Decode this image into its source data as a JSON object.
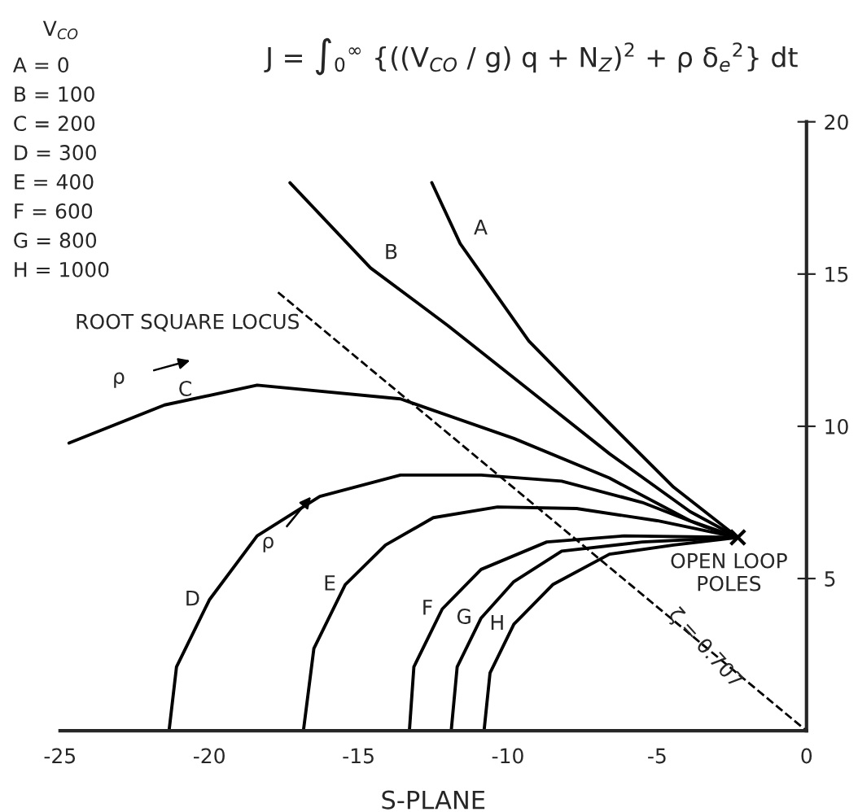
{
  "chart_data": {
    "type": "line",
    "title": "J = ∫$_{0}$$^{∞}$ {((V$_{CO}$ / g) q + N$_{Z}$)$^{2}$ + ρ δ$_{e}$$^{2}$} dt",
    "xlabel": "S-PLANE",
    "xlim": [
      -25,
      0
    ],
    "ylim": [
      0,
      20
    ],
    "xticks": [
      -25,
      -20,
      -15,
      -10,
      -5,
      0
    ],
    "yticks": [
      5,
      10,
      15,
      20
    ],
    "grid": false,
    "line_style": "solid",
    "marker": "none",
    "series": [
      {
        "name": "A",
        "color": "#000000",
        "x": [
          -12.55,
          -11.6,
          -9.3,
          -6.6,
          -4.45,
          -2.3
        ],
        "values": [
          18.0,
          16.0,
          12.8,
          10.1,
          8.0,
          6.35
        ]
      },
      {
        "name": "B",
        "color": "#000000",
        "x": [
          -17.3,
          -14.6,
          -12.0,
          -9.3,
          -6.6,
          -3.9,
          -2.3
        ],
        "values": [
          18.0,
          15.2,
          13.3,
          11.2,
          9.1,
          7.2,
          6.35
        ]
      },
      {
        "name": "C",
        "color": "#000000",
        "x": [
          -24.7,
          -21.5,
          -18.4,
          -13.6,
          -9.8,
          -6.6,
          -3.9,
          -2.3
        ],
        "values": [
          9.45,
          10.7,
          11.35,
          10.9,
          9.6,
          8.3,
          6.9,
          6.35
        ]
      },
      {
        "name": "D",
        "color": "#000000",
        "x": [
          -21.35,
          -21.1,
          -20.0,
          -18.4,
          -16.3,
          -13.6,
          -10.9,
          -8.2,
          -5.5,
          -3.4,
          -2.3
        ],
        "values": [
          0,
          2.1,
          4.3,
          6.4,
          7.7,
          8.4,
          8.4,
          8.2,
          7.5,
          6.7,
          6.35
        ]
      },
      {
        "name": "E",
        "color": "#000000",
        "x": [
          -16.85,
          -16.5,
          -15.45,
          -14.1,
          -12.5,
          -10.35,
          -7.7,
          -5.0,
          -2.3
        ],
        "values": [
          0,
          2.7,
          4.8,
          6.1,
          7.0,
          7.35,
          7.3,
          6.9,
          6.35
        ]
      },
      {
        "name": "F",
        "color": "#000000",
        "x": [
          -13.3,
          -13.15,
          -12.2,
          -10.9,
          -8.7,
          -6.1,
          -2.3
        ],
        "values": [
          0,
          2.1,
          4.0,
          5.3,
          6.2,
          6.4,
          6.35
        ]
      },
      {
        "name": "G",
        "color": "#000000",
        "x": [
          -11.9,
          -11.7,
          -10.9,
          -9.8,
          -8.2,
          -5.5,
          -2.3
        ],
        "values": [
          0,
          2.1,
          3.7,
          4.9,
          5.9,
          6.2,
          6.35
        ]
      },
      {
        "name": "H",
        "color": "#000000",
        "x": [
          -10.8,
          -10.6,
          -9.8,
          -8.5,
          -6.6,
          -4.45,
          -2.3
        ],
        "values": [
          0,
          1.9,
          3.5,
          4.8,
          5.8,
          6.1,
          6.35
        ]
      },
      {
        "type": "line",
        "line_style": "dashed",
        "color": "#000000",
        "x": [
          -17.7,
          0
        ],
        "values": [
          14.4,
          0
        ]
      },
      {
        "type": "scatter",
        "marker": "cross",
        "color": "#000000",
        "x": [
          -2.3
        ],
        "values": [
          6.35
        ]
      }
    ],
    "annotations": [
      "V$_{CO}$",
      "A = 0",
      "B = 100",
      "C = 200",
      "D = 300",
      "E = 400",
      "F = 600",
      "G = 800",
      "H = 1000",
      "ROOT SQUARE LOCUS",
      "ρ",
      "ρ",
      {
        "text": "OPEN LOOP POLES",
        "x": -2.3,
        "y": 6.35
      },
      {
        "text": "ζ = 0.707",
        "x": -3.5,
        "y": 2.9
      }
    ]
  }
}
